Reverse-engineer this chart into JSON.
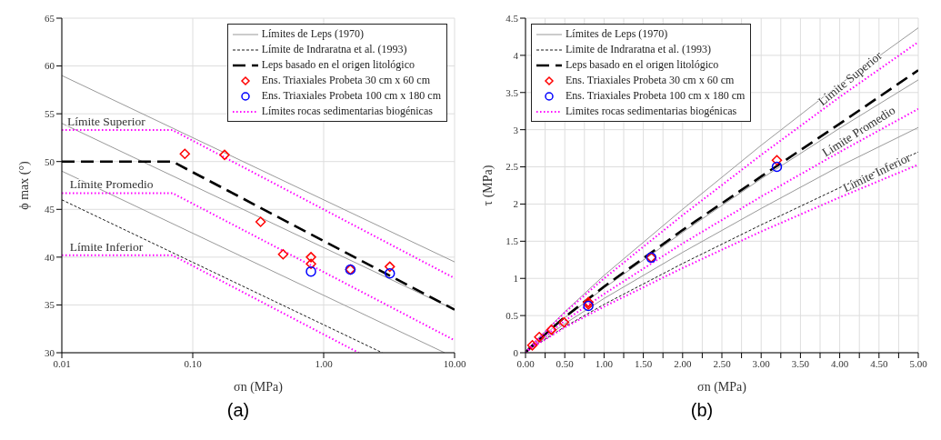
{
  "chart_data": [
    {
      "type": "line",
      "title": "(a)",
      "xlabel": "σn (MPa)",
      "ylabel": "ϕ max (°)",
      "log": "x",
      "grid": true,
      "legend": "top right",
      "xlim": [
        0.01,
        10
      ],
      "xticks": [
        {
          "value": 0.01,
          "label": "0.01"
        },
        {
          "value": 0.1,
          "label": "0.10"
        },
        {
          "value": 1,
          "label": "1.00"
        },
        {
          "value": 10,
          "label": "10.00"
        }
      ],
      "ylim": [
        30,
        65
      ],
      "yticks": [
        30,
        35,
        40,
        45,
        50,
        55,
        60,
        65
      ],
      "annotations": [
        {
          "text": "Límite Superior",
          "x": 0.011,
          "y": 53.3
        },
        {
          "text": "Límite Promedio",
          "x": 0.0115,
          "y": 46.7
        },
        {
          "text": "Límite Inferior",
          "x": 0.0115,
          "y": 40.2
        }
      ],
      "series": [
        {
          "name": "Límites de Leps (1970)",
          "color": "#999999",
          "line_style": "solid",
          "x": [
            0.01,
            10
          ],
          "values": [
            59,
            39.5
          ]
        },
        {
          "color": "#999999",
          "line_style": "solid",
          "x": [
            0.01,
            10
          ],
          "values": [
            54,
            34.5
          ]
        },
        {
          "color": "#999999",
          "line_style": "solid",
          "x": [
            0.01,
            8.4
          ],
          "values": [
            49,
            30
          ]
        },
        {
          "name": "Límite de Indraratna et al. (1993)",
          "color": "#000000",
          "line_style": "dashed",
          "x": [
            0.01,
            2.8
          ],
          "values": [
            46,
            30
          ]
        },
        {
          "name": "Leps basado en el origen litológico",
          "color": "#000000",
          "line_style": "dashed",
          "x": [
            0.01,
            0.07,
            10
          ],
          "values": [
            50,
            50,
            34.5
          ]
        },
        {
          "type": "scatter",
          "name": "Ens. Triaxiales Probeta 30 cm x 60 cm",
          "color": "#ff0000",
          "marker": "diamond",
          "x": [
            0.087,
            0.175,
            0.33,
            0.49,
            0.8,
            0.8,
            1.6,
            3.2
          ],
          "values": [
            50.8,
            50.7,
            43.7,
            40.3,
            40.0,
            39.3,
            38.7,
            39.0
          ]
        },
        {
          "type": "scatter",
          "name": "Ens. Triaxiales Probeta 100 cm x 180 cm",
          "color": "#0000ff",
          "marker": "circle",
          "x": [
            0.8,
            1.6,
            3.2
          ],
          "values": [
            38.5,
            38.7,
            38.3
          ]
        },
        {
          "name": "Límites rocas sedimentarias biogénicas",
          "color": "#ff00ff",
          "line_style": "dotted",
          "x": [
            0.01,
            0.07,
            10
          ],
          "values": [
            53.3,
            53.3,
            37.8
          ]
        },
        {
          "color": "#ff00ff",
          "line_style": "dotted",
          "x": [
            0.01,
            0.07,
            10
          ],
          "values": [
            46.7,
            46.7,
            31.3
          ]
        },
        {
          "color": "#ff00ff",
          "line_style": "dotted",
          "x": [
            0.01,
            0.07,
            1.85
          ],
          "values": [
            40.2,
            40.2,
            30
          ]
        }
      ]
    },
    {
      "type": "line",
      "title": "(b)",
      "xlabel": "σn (MPa)",
      "ylabel": "τ (MPa)",
      "grid": true,
      "legend": "top left",
      "xlim": [
        0,
        5
      ],
      "xticks": [
        {
          "value": 0,
          "label": "0.00"
        },
        {
          "value": 0.25,
          "label": null
        },
        {
          "value": 0.5,
          "label": "0.50"
        },
        {
          "value": 0.75,
          "label": null
        },
        {
          "value": 1,
          "label": "1.00"
        },
        {
          "value": 1.25,
          "label": null
        },
        {
          "value": 1.5,
          "label": "1.50"
        },
        {
          "value": 1.75,
          "label": null
        },
        {
          "value": 2,
          "label": "2.00"
        },
        {
          "value": 2.25,
          "label": null
        },
        {
          "value": 2.5,
          "label": "2.50"
        },
        {
          "value": 2.75,
          "label": null
        },
        {
          "value": 3,
          "label": "3.00"
        },
        {
          "value": 3.25,
          "label": null
        },
        {
          "value": 3.5,
          "label": "3.50"
        },
        {
          "value": 3.75,
          "label": null
        },
        {
          "value": 4,
          "label": "4.00"
        },
        {
          "value": 4.25,
          "label": null
        },
        {
          "value": 4.5,
          "label": "4.50"
        },
        {
          "value": 4.75,
          "label": null
        },
        {
          "value": 5,
          "label": "5.00"
        }
      ],
      "ylim": [
        0,
        4.5
      ],
      "yticks": [
        0,
        0.5,
        1,
        1.5,
        2,
        2.5,
        3,
        3.5,
        4,
        4.5
      ],
      "annotations": [
        {
          "text": "Límite Superior",
          "x": 4.2,
          "y": 3.6
        },
        {
          "text": "Límite Promedio",
          "x": 4.3,
          "y": 2.88
        },
        {
          "text": "Límite Inferior",
          "x": 4.52,
          "y": 2.32
        }
      ],
      "series": [
        {
          "name": "Límites de Leps (1970)",
          "color": "#999999",
          "line_style": "solid",
          "x": [
            0,
            0.1,
            0.5,
            1,
            2,
            3,
            4,
            5
          ],
          "values": [
            0,
            0.13,
            0.55,
            1.04,
            1.93,
            2.79,
            3.61,
            4.37
          ]
        },
        {
          "color": "#999999",
          "line_style": "solid",
          "x": [
            0,
            0.1,
            0.5,
            1,
            2,
            3,
            4,
            5
          ],
          "values": [
            0,
            0.11,
            0.47,
            0.87,
            1.62,
            2.34,
            3.02,
            3.67
          ]
        },
        {
          "color": "#999999",
          "line_style": "solid",
          "x": [
            0,
            0.1,
            0.5,
            1,
            2,
            3,
            4,
            5
          ],
          "values": [
            0,
            0.09,
            0.39,
            0.73,
            1.35,
            1.94,
            2.51,
            3.03
          ]
        },
        {
          "name": "Limite de Indraratna et al. (1993)",
          "color": "#000000",
          "line_style": "dashed",
          "x": [
            0,
            0.1,
            0.5,
            1,
            2,
            3,
            4,
            5
          ],
          "values": [
            0,
            0.08,
            0.35,
            0.65,
            1.2,
            1.72,
            2.22,
            2.7
          ]
        },
        {
          "name": "Leps basado en el origen litológico",
          "color": "#000000",
          "line_style": "dashed",
          "x": [
            0,
            0.07,
            0.5,
            1,
            2,
            3,
            4,
            5
          ],
          "values": [
            0,
            0.08,
            0.48,
            0.89,
            1.65,
            2.37,
            3.08,
            3.8
          ]
        },
        {
          "type": "scatter",
          "name": "Ens. Triaxiales Probeta 30 cm x 60 cm",
          "color": "#ff0000",
          "marker": "diamond",
          "x": [
            0.087,
            0.175,
            0.33,
            0.49,
            0.8,
            0.8,
            1.6,
            3.2
          ],
          "values": [
            0.1,
            0.21,
            0.31,
            0.41,
            0.68,
            0.65,
            1.28,
            2.59
          ]
        },
        {
          "type": "scatter",
          "name": "Ens. Triaxiales Probeta 100 cm x 180 cm",
          "color": "#0000ff",
          "marker": "circle",
          "x": [
            0.8,
            1.6,
            3.2
          ],
          "values": [
            0.63,
            1.28,
            2.5
          ]
        },
        {
          "name": "Limites rocas sedimentarias biogénicas",
          "color": "#ff00ff",
          "line_style": "dotted",
          "x": [
            0,
            0.07,
            0.5,
            1,
            2,
            3,
            4,
            5
          ],
          "values": [
            0,
            0.09,
            0.54,
            1.0,
            1.85,
            2.66,
            3.44,
            4.18
          ]
        },
        {
          "color": "#ff00ff",
          "line_style": "dotted",
          "x": [
            0,
            0.07,
            0.5,
            1,
            2,
            3,
            4,
            5
          ],
          "values": [
            0,
            0.07,
            0.43,
            0.79,
            1.47,
            2.1,
            2.7,
            3.28
          ]
        },
        {
          "color": "#ff00ff",
          "line_style": "dotted",
          "x": [
            0,
            0.07,
            0.5,
            1,
            2,
            3,
            4,
            5
          ],
          "values": [
            0,
            0.06,
            0.34,
            0.62,
            1.14,
            1.63,
            2.09,
            2.53
          ]
        }
      ]
    }
  ]
}
